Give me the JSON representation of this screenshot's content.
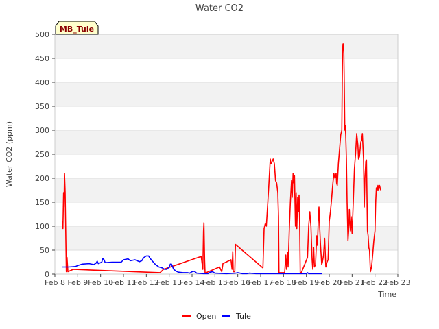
{
  "chart_data": {
    "type": "line",
    "title": "Water CO2",
    "xlabel": "Time",
    "ylabel": "Water CO2 (ppm)",
    "badge": "MB_Tule",
    "xlim": [
      8.0,
      23.0
    ],
    "ylim": [
      0,
      500
    ],
    "x_ticks": [
      {
        "v": 8,
        "label": "Feb 8"
      },
      {
        "v": 9,
        "label": "Feb 9"
      },
      {
        "v": 10,
        "label": "Feb 10"
      },
      {
        "v": 11,
        "label": "Feb 11"
      },
      {
        "v": 12,
        "label": "Feb 12"
      },
      {
        "v": 13,
        "label": "Feb 13"
      },
      {
        "v": 14,
        "label": "Feb 14"
      },
      {
        "v": 15,
        "label": "Feb 15"
      },
      {
        "v": 16,
        "label": "Feb 16"
      },
      {
        "v": 17,
        "label": "Feb 17"
      },
      {
        "v": 18,
        "label": "Feb 18"
      },
      {
        "v": 19,
        "label": "Feb 19"
      },
      {
        "v": 20,
        "label": "Feb 20"
      },
      {
        "v": 21,
        "label": "Feb 21"
      },
      {
        "v": 22,
        "label": "Feb 22"
      },
      {
        "v": 23,
        "label": "Feb 23"
      }
    ],
    "y_ticks": [
      0,
      50,
      100,
      150,
      200,
      250,
      300,
      350,
      400,
      450,
      500
    ],
    "legend": "bottom-center",
    "series": [
      {
        "name": "Open",
        "color": "#ff0000",
        "points": [
          [
            8.33,
            110
          ],
          [
            8.35,
            95
          ],
          [
            8.38,
            170
          ],
          [
            8.4,
            140
          ],
          [
            8.42,
            210
          ],
          [
            8.45,
            170
          ],
          [
            8.47,
            100
          ],
          [
            8.5,
            5
          ],
          [
            8.53,
            35
          ],
          [
            8.57,
            5
          ],
          [
            8.8,
            10
          ],
          [
            12.6,
            3
          ],
          [
            12.75,
            10
          ],
          [
            14.4,
            37
          ],
          [
            14.47,
            10
          ],
          [
            14.5,
            90
          ],
          [
            14.52,
            107
          ],
          [
            14.55,
            30
          ],
          [
            14.57,
            2
          ],
          [
            15.2,
            15
          ],
          [
            15.3,
            5
          ],
          [
            15.35,
            22
          ],
          [
            15.7,
            30
          ],
          [
            15.75,
            10
          ],
          [
            15.78,
            47
          ],
          [
            15.8,
            5
          ],
          [
            15.87,
            5
          ],
          [
            15.9,
            62
          ],
          [
            17.1,
            13
          ],
          [
            17.15,
            95
          ],
          [
            17.2,
            105
          ],
          [
            17.25,
            100
          ],
          [
            17.35,
            180
          ],
          [
            17.42,
            240
          ],
          [
            17.45,
            230
          ],
          [
            17.5,
            235
          ],
          [
            17.55,
            240
          ],
          [
            17.6,
            230
          ],
          [
            17.65,
            195
          ],
          [
            17.7,
            190
          ],
          [
            17.75,
            170
          ],
          [
            17.78,
            120
          ],
          [
            17.8,
            3
          ],
          [
            18.05,
            3
          ],
          [
            18.1,
            40
          ],
          [
            18.13,
            10
          ],
          [
            18.18,
            45
          ],
          [
            18.2,
            15
          ],
          [
            18.25,
            90
          ],
          [
            18.3,
            150
          ],
          [
            18.35,
            195
          ],
          [
            18.38,
            160
          ],
          [
            18.42,
            210
          ],
          [
            18.45,
            190
          ],
          [
            18.48,
            205
          ],
          [
            18.52,
            100
          ],
          [
            18.55,
            170
          ],
          [
            18.58,
            95
          ],
          [
            18.62,
            160
          ],
          [
            18.65,
            130
          ],
          [
            18.68,
            165
          ],
          [
            18.7,
            120
          ],
          [
            18.73,
            3
          ],
          [
            18.78,
            3
          ],
          [
            19.05,
            35
          ],
          [
            19.1,
            100
          ],
          [
            19.15,
            130
          ],
          [
            19.18,
            110
          ],
          [
            19.2,
            100
          ],
          [
            19.25,
            30
          ],
          [
            19.28,
            10
          ],
          [
            19.32,
            55
          ],
          [
            19.35,
            15
          ],
          [
            19.4,
            20
          ],
          [
            19.45,
            80
          ],
          [
            19.48,
            60
          ],
          [
            19.52,
            110
          ],
          [
            19.55,
            140
          ],
          [
            19.58,
            100
          ],
          [
            19.62,
            60
          ],
          [
            19.67,
            20
          ],
          [
            19.7,
            25
          ],
          [
            19.75,
            40
          ],
          [
            19.8,
            75
          ],
          [
            19.83,
            40
          ],
          [
            19.85,
            15
          ],
          [
            19.9,
            25
          ],
          [
            19.95,
            30
          ],
          [
            20.0,
            110
          ],
          [
            20.05,
            130
          ],
          [
            20.1,
            155
          ],
          [
            20.15,
            185
          ],
          [
            20.2,
            210
          ],
          [
            20.25,
            200
          ],
          [
            20.3,
            210
          ],
          [
            20.32,
            190
          ],
          [
            20.35,
            185
          ],
          [
            20.4,
            230
          ],
          [
            20.45,
            260
          ],
          [
            20.5,
            290
          ],
          [
            20.55,
            300
          ],
          [
            20.58,
            460
          ],
          [
            20.6,
            480
          ],
          [
            20.63,
            480
          ],
          [
            20.65,
            420
          ],
          [
            20.68,
            300
          ],
          [
            20.7,
            310
          ],
          [
            20.72,
            290
          ],
          [
            20.75,
            240
          ],
          [
            20.78,
            150
          ],
          [
            20.82,
            70
          ],
          [
            20.85,
            90
          ],
          [
            20.88,
            135
          ],
          [
            20.9,
            110
          ],
          [
            20.93,
            90
          ],
          [
            20.96,
            120
          ],
          [
            21.0,
            85
          ],
          [
            21.05,
            150
          ],
          [
            21.1,
            220
          ],
          [
            21.15,
            250
          ],
          [
            21.2,
            293
          ],
          [
            21.25,
            270
          ],
          [
            21.28,
            240
          ],
          [
            21.32,
            245
          ],
          [
            21.38,
            275
          ],
          [
            21.42,
            280
          ],
          [
            21.45,
            293
          ],
          [
            21.5,
            240
          ],
          [
            21.53,
            140
          ],
          [
            21.56,
            200
          ],
          [
            21.6,
            235
          ],
          [
            21.63,
            238
          ],
          [
            21.67,
            90
          ],
          [
            21.7,
            80
          ],
          [
            21.73,
            55
          ],
          [
            21.76,
            50
          ],
          [
            21.8,
            5
          ],
          [
            21.85,
            15
          ],
          [
            21.9,
            40
          ],
          [
            21.95,
            70
          ],
          [
            22.0,
            90
          ],
          [
            22.03,
            150
          ],
          [
            22.06,
            180
          ],
          [
            22.1,
            175
          ],
          [
            22.13,
            185
          ],
          [
            22.16,
            175
          ],
          [
            22.2,
            185
          ],
          [
            22.25,
            175
          ]
        ]
      },
      {
        "name": "Tule",
        "color": "#0000ff",
        "points": [
          [
            8.3,
            15
          ],
          [
            8.6,
            15
          ],
          [
            8.9,
            16
          ],
          [
            9.0,
            18
          ],
          [
            9.2,
            21
          ],
          [
            9.5,
            22
          ],
          [
            9.7,
            20
          ],
          [
            9.8,
            23
          ],
          [
            9.85,
            27
          ],
          [
            9.9,
            22
          ],
          [
            10.05,
            25
          ],
          [
            10.1,
            33
          ],
          [
            10.15,
            30
          ],
          [
            10.2,
            24
          ],
          [
            10.5,
            25
          ],
          [
            10.9,
            25
          ],
          [
            11.0,
            30
          ],
          [
            11.2,
            32
          ],
          [
            11.3,
            28
          ],
          [
            11.5,
            30
          ],
          [
            11.6,
            28
          ],
          [
            11.7,
            26
          ],
          [
            11.8,
            28
          ],
          [
            11.85,
            32
          ],
          [
            11.9,
            35
          ],
          [
            12.0,
            38
          ],
          [
            12.1,
            38
          ],
          [
            12.15,
            34
          ],
          [
            12.25,
            28
          ],
          [
            12.4,
            20
          ],
          [
            12.55,
            15
          ],
          [
            12.7,
            13
          ],
          [
            12.8,
            10
          ],
          [
            12.9,
            10
          ],
          [
            13.0,
            15
          ],
          [
            13.05,
            21
          ],
          [
            13.1,
            21
          ],
          [
            13.15,
            15
          ],
          [
            13.2,
            10
          ],
          [
            13.3,
            6
          ],
          [
            13.4,
            4
          ],
          [
            13.6,
            3
          ],
          [
            13.8,
            3
          ],
          [
            13.9,
            2
          ],
          [
            14.0,
            5
          ],
          [
            14.1,
            6
          ],
          [
            14.2,
            2
          ],
          [
            14.5,
            1
          ],
          [
            14.7,
            1
          ],
          [
            14.8,
            4
          ],
          [
            14.9,
            5
          ],
          [
            15.0,
            2
          ],
          [
            15.5,
            1
          ],
          [
            15.9,
            2
          ],
          [
            16.0,
            3
          ],
          [
            16.2,
            1
          ],
          [
            16.4,
            1
          ],
          [
            16.5,
            2
          ],
          [
            16.8,
            1
          ],
          [
            19.0,
            1
          ],
          [
            19.05,
            3
          ],
          [
            19.1,
            1
          ],
          [
            19.7,
            1
          ]
        ]
      }
    ]
  }
}
